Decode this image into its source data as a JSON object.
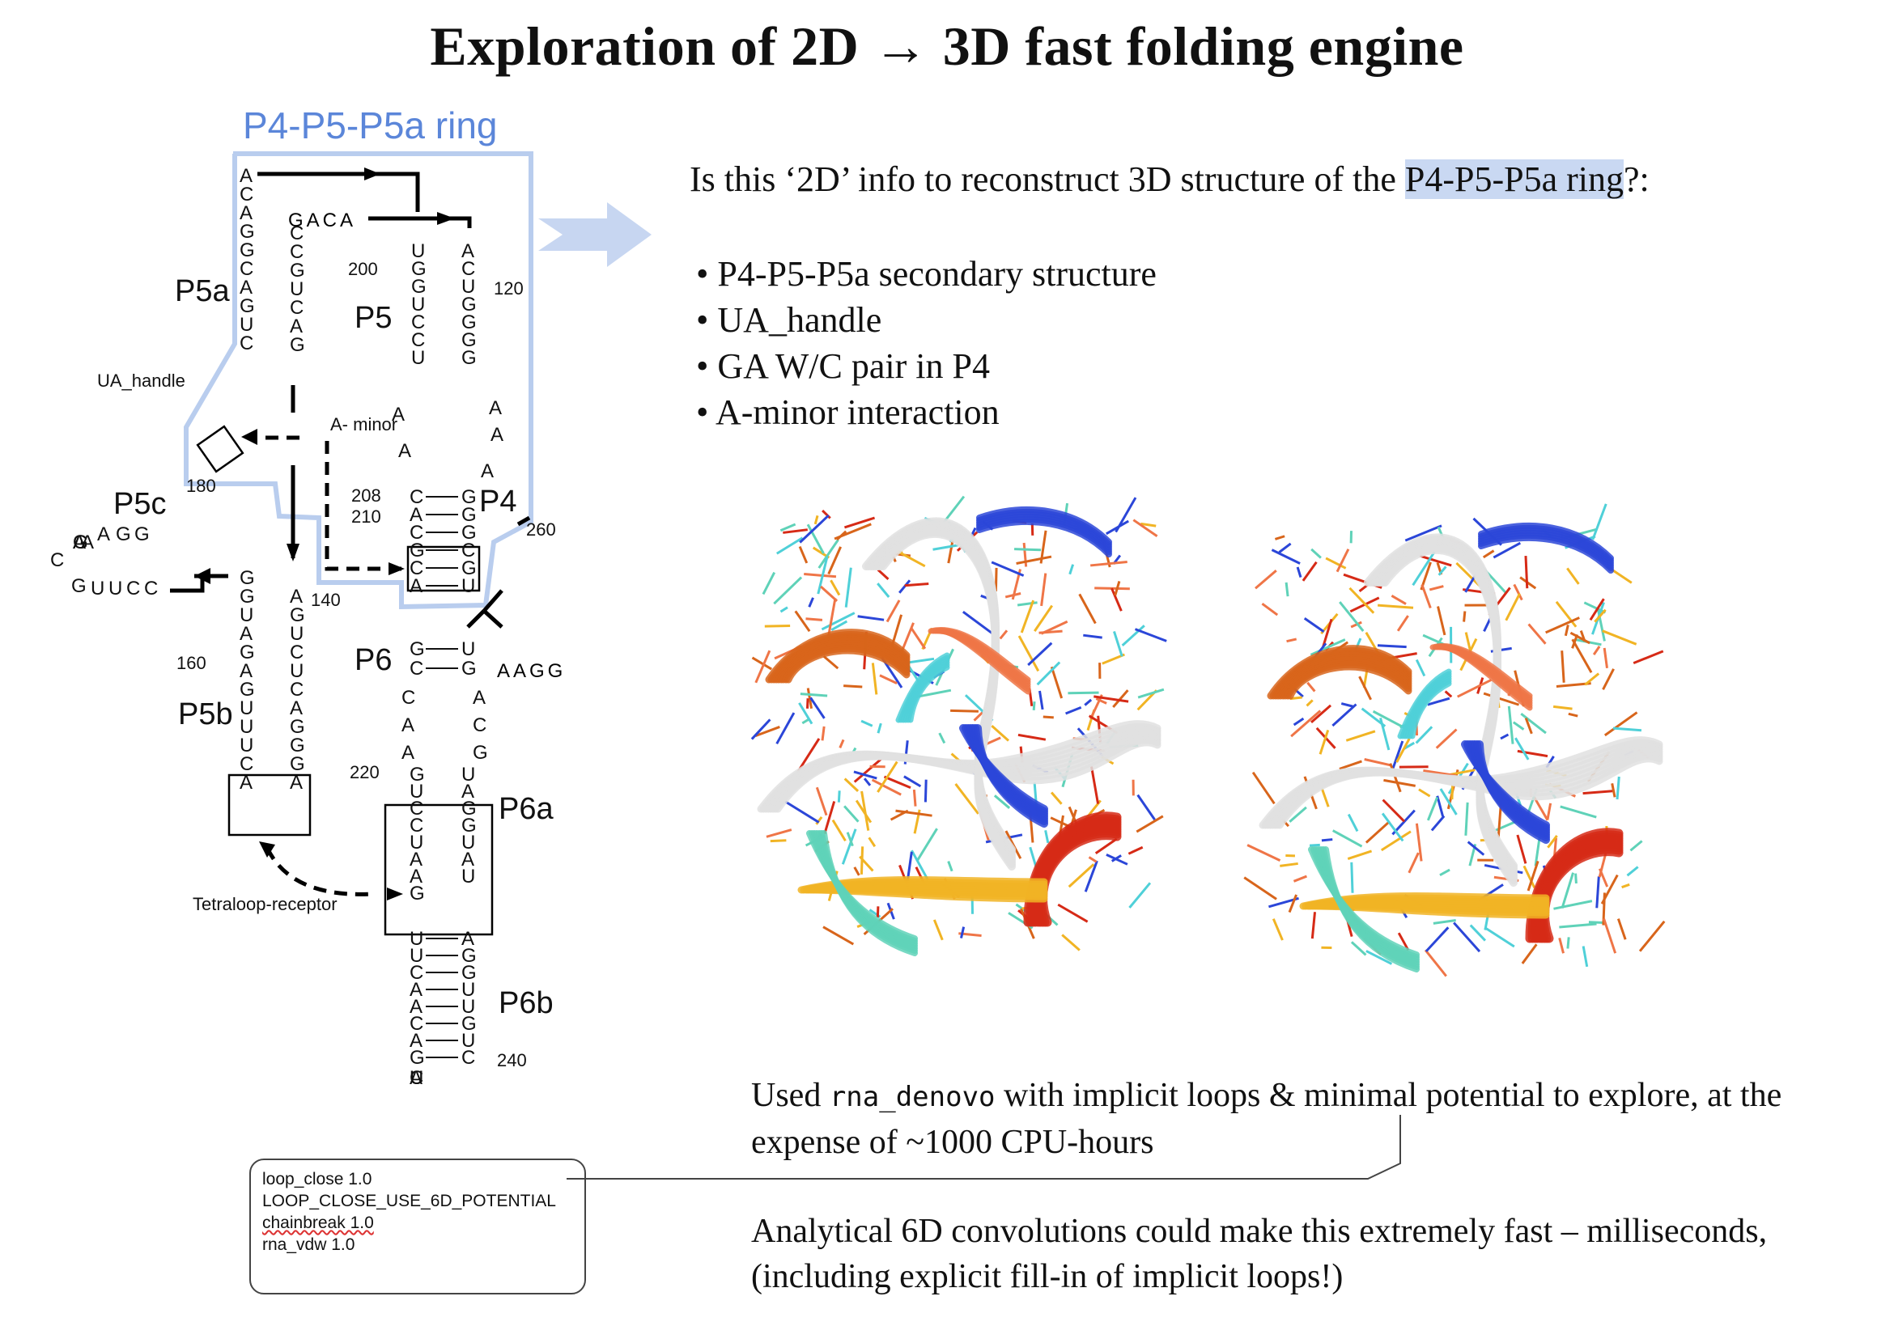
{
  "title": "Exploration of 2D → 3D fast folding engine",
  "ring_label": "P4-P5-P5a ring",
  "question": {
    "before": "Is this  ‘2D’ info to reconstruct 3D structure of the ",
    "highlight": "P4-P5-P5a ring",
    "after": "?:"
  },
  "bullets": [
    "P4-P5-P5a secondary structure",
    "UA_handle",
    "GA W/C pair in P4",
    "A-minor interaction"
  ],
  "note1": {
    "before": "Used ",
    "code": "rna_denovo",
    "after": " with implicit loops & minimal potential to explore, at the expense of ~1000 CPU-hours"
  },
  "note2": "Analytical 6D convolutions could make this extremely fast – milliseconds, (including explicit fill-in of implicit loops!)",
  "params": [
    "loop_close 1.0",
    "LOOP_CLOSE_USE_6D_POTENTIAL",
    "chainbreak 1.0",
    "rna_vdw 1.0"
  ],
  "diagram": {
    "helix_labels": [
      "P5a",
      "P5",
      "P4",
      "P5c",
      "P6",
      "P5b",
      "P6a",
      "P6b"
    ],
    "annotations": [
      "UA_handle",
      "A-\nminor",
      "Tetraloop-receptor"
    ],
    "numbers": [
      "200",
      "120",
      "180",
      "208",
      "210",
      "260",
      "140",
      "160",
      "220",
      "240"
    ],
    "loop_GACA": "GACA",
    "left_strand_top": [
      "A",
      "C",
      "A",
      "G",
      "G",
      "C",
      "A",
      "G",
      "U",
      "C"
    ],
    "right_strand_top": [
      "C",
      "C",
      "G",
      "U",
      "C",
      "A",
      "G"
    ],
    "P5_left": [
      "U",
      "G",
      "G",
      "U",
      "C",
      "C",
      "U"
    ],
    "P5_right": [
      "A",
      "C",
      "U",
      "G",
      "G",
      "G",
      "G"
    ],
    "P4_pairs": [
      [
        "C",
        "G"
      ],
      [
        "A",
        "G"
      ],
      [
        "C",
        "G"
      ],
      [
        "G",
        "C"
      ],
      [
        "C",
        "G"
      ],
      [
        "A",
        "U"
      ]
    ],
    "P5c_loop": [
      "A",
      "A",
      "G",
      "G",
      "C",
      "G",
      "U",
      "U",
      "C",
      "C"
    ],
    "P5b_left": [
      "G",
      "G",
      "U",
      "A",
      "G",
      "A",
      "G",
      "U",
      "U",
      "U",
      "C",
      "A"
    ],
    "P5b_right": [
      "A",
      "G",
      "U",
      "C",
      "U",
      "C",
      "A",
      "G",
      "G",
      "G",
      "A"
    ],
    "P6_pairs": [
      [
        "G",
        "U"
      ],
      [
        "C",
        "G"
      ]
    ],
    "P6a_left": [
      "G",
      "U",
      "C",
      "C",
      "U",
      "A",
      "A",
      "G"
    ],
    "P6a_right": [
      "U",
      "A",
      "G",
      "G",
      "U",
      "A",
      "U"
    ],
    "P6b_pairs": [
      [
        "U",
        "A"
      ],
      [
        "U",
        "G"
      ],
      [
        "C",
        "G"
      ],
      [
        "A",
        "U"
      ],
      [
        "A",
        "U"
      ],
      [
        "C",
        "G"
      ],
      [
        "A",
        "U"
      ],
      [
        "G",
        "C"
      ]
    ],
    "P6b_loop": [
      "A",
      "U",
      "C",
      "U"
    ],
    "linker_CAA": [
      "C",
      "A",
      "A"
    ],
    "linker_ACG": [
      "A",
      "C",
      "G"
    ],
    "AAGG": "AAGG",
    "A_minor_letters": [
      "A",
      "A",
      "A",
      "A",
      "A"
    ],
    "colors": {
      "ring": "#b9cdee",
      "ring_label": "#5b86d9"
    }
  },
  "models": {
    "colors": [
      "#e0e0e0",
      "#d8651b",
      "#2b46d8",
      "#d62a16",
      "#f1b424",
      "#4fd0d8",
      "#5fd2b8",
      "#ef7547"
    ]
  }
}
